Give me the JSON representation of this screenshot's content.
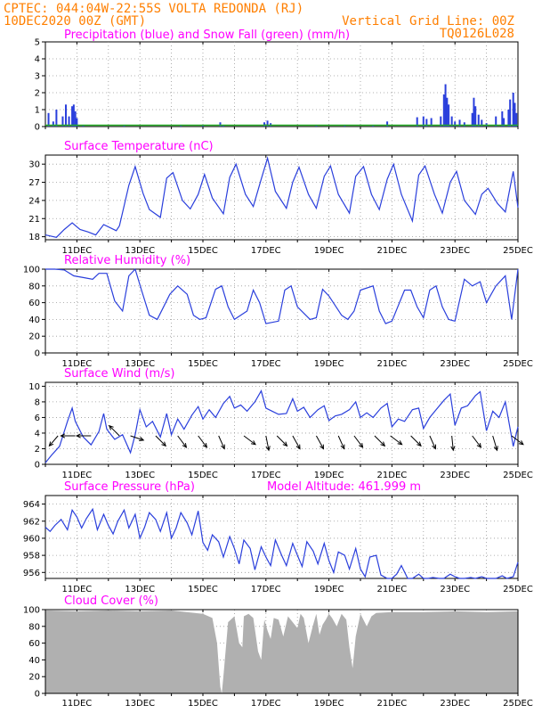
{
  "header": {
    "line1": "CPTEC:   044:04W-22:55S   VOLTA REDONDA (RJ)",
    "line2": "10DEC2020 00Z (GMT)",
    "grid_note": "Vertical Grid Line: 00Z",
    "code": "TQ0126L028"
  },
  "colors": {
    "header": "#ff7f00",
    "title": "#ff00ff",
    "series": "#2a3fdc",
    "snow": "#22aa22",
    "cloud": "#b0b0b0",
    "arrow": "#000000"
  },
  "date_labels": [
    "11DEC",
    "13DEC",
    "15DEC",
    "17DEC",
    "19DEC",
    "21DEC",
    "23DEC",
    "25DEC"
  ],
  "chart_data": [
    {
      "id": "precip",
      "type": "bar",
      "title": "Precipitation (blue) and Snow Fall (green) (mm/h)",
      "ylim": [
        0,
        5
      ],
      "yticks": [
        "0",
        "1",
        "2",
        "3",
        "4",
        "5"
      ],
      "series": [
        {
          "name": "Precipitation",
          "values": [
            {
              "x": 10.1,
              "v": 0.8
            },
            {
              "x": 10.25,
              "v": 0.3
            },
            {
              "x": 10.35,
              "v": 1.0
            },
            {
              "x": 10.55,
              "v": 0.6
            },
            {
              "x": 10.65,
              "v": 1.3
            },
            {
              "x": 10.75,
              "v": 0.6
            },
            {
              "x": 10.85,
              "v": 1.2
            },
            {
              "x": 10.9,
              "v": 1.3
            },
            {
              "x": 10.95,
              "v": 0.9
            },
            {
              "x": 11.0,
              "v": 0.5
            },
            {
              "x": 11.2,
              "v": 0.1
            },
            {
              "x": 12.5,
              "v": 0.05
            },
            {
              "x": 14.3,
              "v": 0.05
            },
            {
              "x": 15.0,
              "v": 0.05
            },
            {
              "x": 15.55,
              "v": 0.25
            },
            {
              "x": 15.65,
              "v": 0.1
            },
            {
              "x": 16.95,
              "v": 0.25
            },
            {
              "x": 17.05,
              "v": 0.35
            },
            {
              "x": 17.15,
              "v": 0.2
            },
            {
              "x": 18.6,
              "v": 0.1
            },
            {
              "x": 19.5,
              "v": 0.1
            },
            {
              "x": 20.4,
              "v": 0.05
            },
            {
              "x": 20.85,
              "v": 0.3
            },
            {
              "x": 21.8,
              "v": 0.55
            },
            {
              "x": 22.0,
              "v": 0.6
            },
            {
              "x": 22.1,
              "v": 0.45
            },
            {
              "x": 22.25,
              "v": 0.5
            },
            {
              "x": 22.55,
              "v": 0.6
            },
            {
              "x": 22.65,
              "v": 1.9
            },
            {
              "x": 22.7,
              "v": 2.5
            },
            {
              "x": 22.75,
              "v": 1.7
            },
            {
              "x": 22.8,
              "v": 1.3
            },
            {
              "x": 22.9,
              "v": 0.6
            },
            {
              "x": 23.0,
              "v": 0.3
            },
            {
              "x": 23.15,
              "v": 0.4
            },
            {
              "x": 23.3,
              "v": 0.25
            },
            {
              "x": 23.55,
              "v": 0.8
            },
            {
              "x": 23.6,
              "v": 1.7
            },
            {
              "x": 23.65,
              "v": 1.2
            },
            {
              "x": 23.75,
              "v": 0.7
            },
            {
              "x": 23.85,
              "v": 0.4
            },
            {
              "x": 24.0,
              "v": 0.2
            },
            {
              "x": 24.3,
              "v": 0.6
            },
            {
              "x": 24.5,
              "v": 0.9
            },
            {
              "x": 24.55,
              "v": 0.5
            },
            {
              "x": 24.7,
              "v": 1.0
            },
            {
              "x": 24.75,
              "v": 1.6
            },
            {
              "x": 24.85,
              "v": 2.0
            },
            {
              "x": 24.9,
              "v": 1.4
            },
            {
              "x": 24.95,
              "v": 0.8
            }
          ]
        },
        {
          "name": "Snow Fall",
          "values": [
            {
              "x": 10.0,
              "v": 0.05
            },
            {
              "x": 25.0,
              "v": 0.05
            }
          ]
        }
      ]
    },
    {
      "id": "temperature",
      "type": "line",
      "title": "Surface Temperature (nC)",
      "ylim": [
        17.5,
        31.5
      ],
      "yticks": [
        "18",
        "21",
        "24",
        "27",
        "30"
      ],
      "x": [
        10.0,
        10.35,
        10.6,
        10.85,
        11.1,
        11.35,
        11.6,
        11.85,
        12.25,
        12.35,
        12.45,
        12.65,
        12.85,
        13.1,
        13.3,
        13.65,
        13.85,
        14.05,
        14.35,
        14.6,
        14.85,
        15.05,
        15.3,
        15.65,
        15.85,
        16.05,
        16.35,
        16.6,
        16.85,
        17.05,
        17.3,
        17.65,
        17.85,
        18.05,
        18.35,
        18.6,
        18.85,
        19.05,
        19.3,
        19.65,
        19.85,
        20.1,
        20.35,
        20.6,
        20.85,
        21.05,
        21.3,
        21.65,
        21.85,
        22.05,
        22.35,
        22.6,
        22.85,
        23.05,
        23.3,
        23.65,
        23.85,
        24.05,
        24.35,
        24.6,
        24.85,
        25.0
      ],
      "y": [
        18.3,
        17.9,
        19.2,
        20.3,
        19.2,
        18.8,
        18.3,
        20.0,
        19.0,
        19.8,
        22.0,
        26.5,
        29.6,
        25.2,
        22.5,
        21.2,
        27.7,
        28.6,
        24.0,
        22.6,
        25.0,
        28.3,
        24.4,
        21.8,
        27.8,
        30.0,
        25.0,
        23.0,
        27.5,
        31.0,
        25.5,
        22.7,
        27.0,
        29.5,
        25.0,
        22.7,
        28.0,
        29.7,
        25.0,
        21.9,
        28.0,
        29.6,
        25.0,
        22.5,
        27.5,
        30.0,
        25.0,
        20.6,
        28.2,
        29.7,
        25.0,
        21.9,
        27.0,
        28.8,
        24.0,
        21.7,
        25.0,
        26.0,
        23.5,
        22.1,
        28.8,
        22.8
      ]
    },
    {
      "id": "humidity",
      "type": "line",
      "title": "Relative Humidity (%)",
      "ylim": [
        0,
        100
      ],
      "yticks": [
        "0",
        "20",
        "40",
        "60",
        "80",
        "100"
      ],
      "x": [
        10.0,
        10.3,
        10.6,
        10.9,
        11.2,
        11.5,
        11.7,
        11.95,
        12.2,
        12.45,
        12.65,
        12.85,
        13.05,
        13.3,
        13.55,
        13.75,
        13.95,
        14.2,
        14.5,
        14.7,
        14.9,
        15.1,
        15.4,
        15.6,
        15.8,
        16.0,
        16.4,
        16.6,
        16.8,
        17.0,
        17.4,
        17.6,
        17.8,
        18.0,
        18.4,
        18.6,
        18.8,
        19.0,
        19.4,
        19.6,
        19.8,
        20.0,
        20.4,
        20.6,
        20.8,
        21.0,
        21.4,
        21.6,
        21.8,
        22.0,
        22.2,
        22.4,
        22.6,
        22.8,
        23.0,
        23.3,
        23.55,
        23.8,
        24.0,
        24.3,
        24.6,
        24.8,
        25.0
      ],
      "y": [
        100,
        100,
        99,
        92,
        90,
        88,
        95,
        95,
        62,
        50,
        92,
        100,
        75,
        45,
        40,
        55,
        70,
        80,
        70,
        45,
        40,
        42,
        76,
        80,
        55,
        40,
        50,
        75,
        60,
        35,
        38,
        75,
        80,
        55,
        40,
        42,
        76,
        68,
        45,
        40,
        50,
        75,
        80,
        50,
        35,
        38,
        75,
        75,
        55,
        42,
        75,
        80,
        55,
        40,
        38,
        88,
        80,
        85,
        60,
        80,
        92,
        40,
        100
      ]
    },
    {
      "id": "wind",
      "type": "line",
      "title": "Surface Wind (m/s)",
      "ylim": [
        0,
        10.5
      ],
      "yticks": [
        "0",
        "2",
        "4",
        "6",
        "8",
        "10"
      ],
      "x": [
        10.0,
        10.2,
        10.45,
        10.7,
        10.85,
        10.95,
        11.2,
        11.45,
        11.7,
        11.85,
        11.95,
        12.2,
        12.45,
        12.7,
        12.85,
        13.0,
        13.2,
        13.4,
        13.65,
        13.85,
        14.0,
        14.2,
        14.4,
        14.65,
        14.85,
        15.0,
        15.2,
        15.4,
        15.65,
        15.85,
        16.0,
        16.2,
        16.4,
        16.65,
        16.85,
        17.0,
        17.2,
        17.4,
        17.65,
        17.85,
        18.0,
        18.2,
        18.4,
        18.65,
        18.85,
        19.0,
        19.2,
        19.4,
        19.65,
        19.85,
        20.0,
        20.2,
        20.4,
        20.65,
        20.85,
        21.0,
        21.2,
        21.4,
        21.65,
        21.85,
        22.0,
        22.2,
        22.4,
        22.65,
        22.85,
        23.0,
        23.2,
        23.4,
        23.65,
        23.8,
        24.0,
        24.2,
        24.4,
        24.6,
        24.85,
        25.0
      ],
      "y": [
        0.2,
        1.2,
        2.3,
        5.5,
        7.2,
        5.5,
        3.5,
        2.5,
        4.2,
        6.5,
        4.5,
        3.2,
        3.8,
        1.5,
        3.8,
        7.0,
        4.8,
        5.5,
        3.5,
        6.5,
        3.8,
        5.8,
        4.5,
        6.3,
        7.4,
        5.8,
        7.0,
        6.0,
        7.8,
        8.7,
        7.2,
        7.6,
        6.8,
        8.0,
        9.4,
        7.2,
        6.8,
        6.4,
        6.5,
        8.4,
        6.8,
        7.3,
        6.0,
        7.0,
        7.5,
        5.6,
        6.2,
        6.4,
        7.0,
        8.0,
        6.0,
        6.6,
        6.0,
        7.2,
        7.8,
        4.8,
        5.8,
        5.5,
        7.0,
        7.2,
        4.6,
        6.0,
        7.0,
        8.2,
        9.0,
        5.0,
        7.2,
        7.5,
        8.8,
        9.3,
        4.3,
        6.8,
        6.0,
        8.0,
        2.3,
        4.8
      ]
    },
    {
      "id": "pressure",
      "type": "line",
      "title": "Surface Pressure (hPa)",
      "annotation": "Model Altitude: 461.999 m",
      "ylim": [
        955.3,
        965.0
      ],
      "yticks": [
        "956",
        "958",
        "960",
        "962",
        "964"
      ],
      "x": [
        10.0,
        10.15,
        10.3,
        10.5,
        10.7,
        10.85,
        11.0,
        11.15,
        11.3,
        11.5,
        11.65,
        11.85,
        12.0,
        12.15,
        12.3,
        12.5,
        12.65,
        12.85,
        13.0,
        13.15,
        13.3,
        13.5,
        13.65,
        13.85,
        14.0,
        14.15,
        14.3,
        14.5,
        14.65,
        14.85,
        15.0,
        15.15,
        15.3,
        15.5,
        15.65,
        15.85,
        16.0,
        16.15,
        16.3,
        16.5,
        16.65,
        16.85,
        17.0,
        17.15,
        17.3,
        17.5,
        17.65,
        17.85,
        18.0,
        18.15,
        18.3,
        18.5,
        18.65,
        18.85,
        19.0,
        19.15,
        19.3,
        19.5,
        19.65,
        19.85,
        20.0,
        20.15,
        20.3,
        20.5,
        20.65,
        20.85,
        21.0,
        21.15,
        21.3,
        21.5,
        21.65,
        21.85,
        22.0,
        22.15,
        22.3,
        22.5,
        22.65,
        22.85,
        23.0,
        23.15,
        23.3,
        23.5,
        23.65,
        23.85,
        24.0,
        24.15,
        24.3,
        24.5,
        24.65,
        24.85,
        25.0
      ],
      "y": [
        961.3,
        960.8,
        961.5,
        962.2,
        961.0,
        963.3,
        962.5,
        961.2,
        962.3,
        963.4,
        961.0,
        962.8,
        961.5,
        960.5,
        962.0,
        963.3,
        961.2,
        962.8,
        960.0,
        961.3,
        963.0,
        962.2,
        960.8,
        963.0,
        960.0,
        961.2,
        963.0,
        961.8,
        960.4,
        963.2,
        959.5,
        958.6,
        960.4,
        959.6,
        957.8,
        960.2,
        958.8,
        957.0,
        959.8,
        958.8,
        956.3,
        959.0,
        957.8,
        956.8,
        959.8,
        958.0,
        956.8,
        959.4,
        958.0,
        956.7,
        959.6,
        958.5,
        957.0,
        959.4,
        957.4,
        956.0,
        958.4,
        958.0,
        956.4,
        958.8,
        956.4,
        955.5,
        957.8,
        958.0,
        955.7,
        955.0,
        954.5,
        955.8,
        956.8,
        955.0,
        954.5,
        955.8,
        955.0,
        954.5,
        955.4,
        955.0,
        954.3,
        955.8,
        955.5,
        954.5,
        955.2,
        955.4,
        954.5,
        955.5,
        955.0,
        954.5,
        955.3,
        955.6,
        954.5,
        955.5,
        957.2
      ]
    },
    {
      "id": "cloud",
      "type": "area",
      "title": "Cloud Cover (%)",
      "ylim": [
        0,
        100
      ],
      "yticks": [
        "0",
        "20",
        "40",
        "60",
        "80",
        "100"
      ],
      "x": [
        10.0,
        11.0,
        12.0,
        13.0,
        14.0,
        15.0,
        15.3,
        15.45,
        15.55,
        15.6,
        15.65,
        15.8,
        16.0,
        16.15,
        16.25,
        16.3,
        16.45,
        16.6,
        16.75,
        16.85,
        16.95,
        17.05,
        17.15,
        17.25,
        17.4,
        17.55,
        17.7,
        17.85,
        18.0,
        18.1,
        18.2,
        18.35,
        18.5,
        18.6,
        18.7,
        18.8,
        18.9,
        19.0,
        19.1,
        19.25,
        19.4,
        19.55,
        19.65,
        19.75,
        19.85,
        20.0,
        20.2,
        20.35,
        20.5,
        21.0,
        22.0,
        23.0,
        24.0,
        25.0
      ],
      "y": [
        99,
        98,
        99,
        98,
        99,
        95,
        90,
        60,
        8,
        0,
        20,
        85,
        92,
        60,
        55,
        92,
        95,
        90,
        50,
        40,
        88,
        75,
        65,
        90,
        88,
        68,
        92,
        85,
        78,
        95,
        90,
        60,
        82,
        95,
        70,
        82,
        88,
        95,
        90,
        80,
        95,
        88,
        55,
        30,
        68,
        95,
        80,
        92,
        96,
        97,
        97,
        98,
        97,
        98
      ]
    },
    {
      "id": "wind_barbs",
      "type": "vector",
      "note": "wind direction arrows overlaid on the Surface Wind panel (arrow tip marks the day the sample belongs to)",
      "vectors": [
        {
          "x": 10.4,
          "u": -0.6,
          "v": 0.7
        },
        {
          "x": 10.95,
          "u": -1,
          "v": 0
        },
        {
          "x": 11.45,
          "u": -1,
          "v": 0
        },
        {
          "x": 12.35,
          "u": -0.7,
          "v": -0.7
        },
        {
          "x": 12.7,
          "u": 0.9,
          "v": 0.3
        },
        {
          "x": 13.5,
          "u": 0.7,
          "v": 0.7
        },
        {
          "x": 14.2,
          "u": 0.6,
          "v": 0.8
        },
        {
          "x": 14.85,
          "u": 0.6,
          "v": 0.8
        },
        {
          "x": 15.5,
          "u": 0.4,
          "v": 0.9
        },
        {
          "x": 16.3,
          "u": 0.8,
          "v": 0.6
        },
        {
          "x": 17.0,
          "u": 0.2,
          "v": 1
        },
        {
          "x": 17.35,
          "u": 0.7,
          "v": 0.7
        },
        {
          "x": 17.85,
          "u": 0.5,
          "v": 0.9
        },
        {
          "x": 18.6,
          "u": 0.5,
          "v": 0.9
        },
        {
          "x": 19.3,
          "u": 0.4,
          "v": 0.9
        },
        {
          "x": 19.8,
          "u": 0.6,
          "v": 0.8
        },
        {
          "x": 20.45,
          "u": 0.7,
          "v": 0.7
        },
        {
          "x": 20.95,
          "u": 0.8,
          "v": 0.6
        },
        {
          "x": 21.6,
          "u": 0.7,
          "v": 0.7
        },
        {
          "x": 22.2,
          "u": 0.4,
          "v": 0.9
        },
        {
          "x": 22.9,
          "u": 0.1,
          "v": 1
        },
        {
          "x": 23.55,
          "u": 0.6,
          "v": 0.8
        },
        {
          "x": 24.2,
          "u": 0.3,
          "v": 1
        },
        {
          "x": 24.8,
          "u": 0.8,
          "v": 0.6
        }
      ]
    }
  ]
}
